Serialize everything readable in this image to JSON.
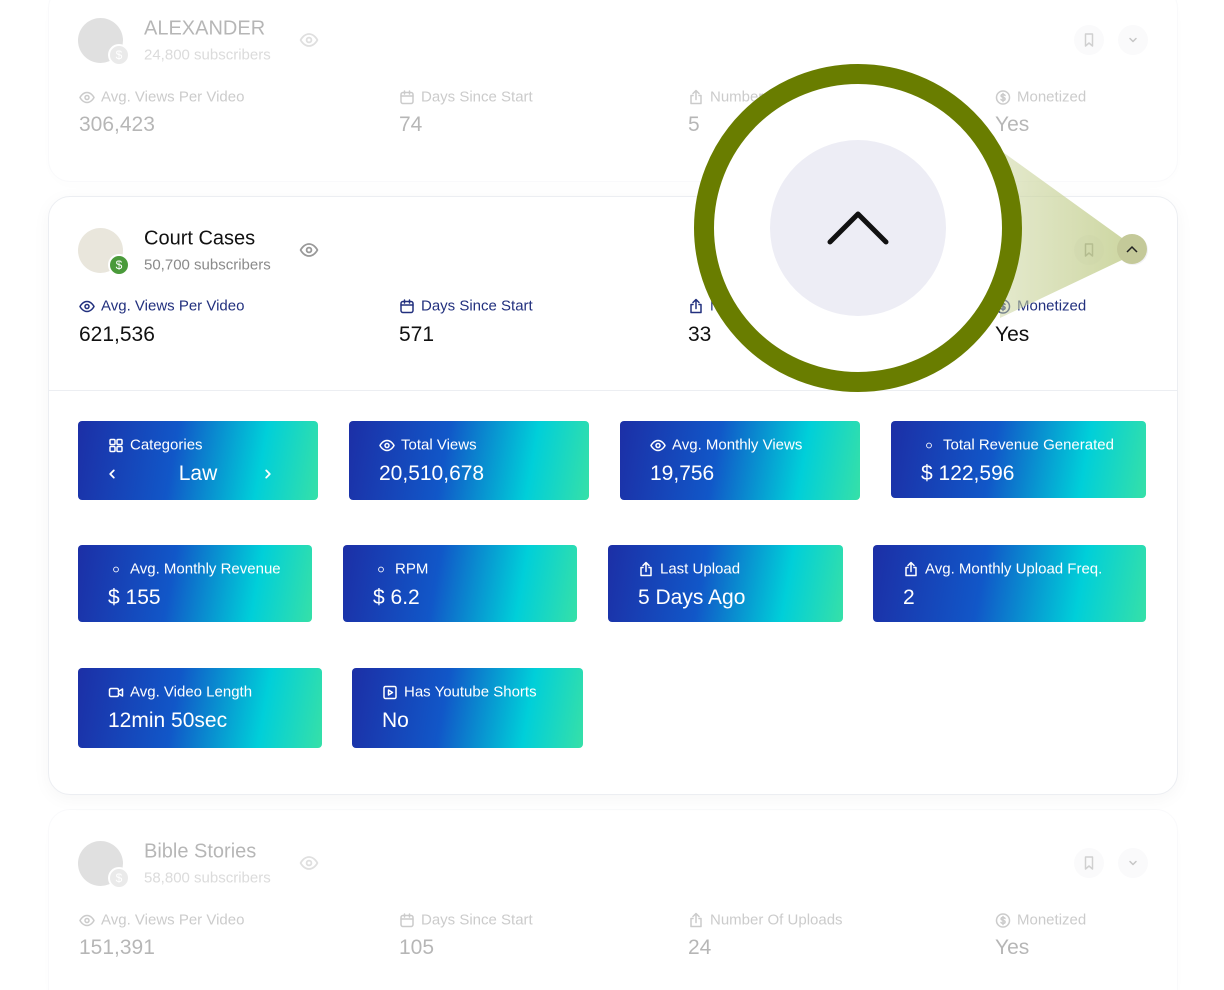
{
  "monetized_badge": "$",
  "channels": [
    {
      "name": "ALEXANDER",
      "subscribers": "24,800 subscribers",
      "stats": [
        {
          "label": "Avg. Views Per Video",
          "value": "306,423"
        },
        {
          "label": "Days Since Start",
          "value": "74"
        },
        {
          "label": "Number Of Uploads",
          "value": "5"
        },
        {
          "label": "Monetized",
          "value": "Yes"
        }
      ]
    },
    {
      "name": "Court Cases",
      "subscribers": "50,700 subscribers",
      "stats": [
        {
          "label": "Avg. Views Per Video",
          "value": "621,536"
        },
        {
          "label": "Days Since Start",
          "value": "571"
        },
        {
          "label": "Number Of Uploads",
          "value": "33"
        },
        {
          "label": "Monetized",
          "value": "Yes"
        }
      ],
      "details": [
        {
          "label": "Categories",
          "value": "Law"
        },
        {
          "label": "Total Views",
          "value": "20,510,678"
        },
        {
          "label": "Avg. Monthly Views",
          "value": "19,756"
        },
        {
          "label": "Total Revenue Generated",
          "value": "$ 122,596"
        },
        {
          "label": "Avg. Monthly Revenue",
          "value": "$ 155"
        },
        {
          "label": "RPM",
          "value": "$ 6.2"
        },
        {
          "label": "Last Upload",
          "value": "5 Days Ago"
        },
        {
          "label": "Avg. Monthly Upload Freq.",
          "value": "2"
        },
        {
          "label": "Avg. Video Length",
          "value": "12min 50sec"
        },
        {
          "label": "Has Youtube Shorts",
          "value": "No"
        }
      ]
    },
    {
      "name": "Bible Stories",
      "subscribers": "58,800 subscribers",
      "stats": [
        {
          "label": "Avg. Views Per Video",
          "value": "151,391"
        },
        {
          "label": "Days Since Start",
          "value": "105"
        },
        {
          "label": "Number Of Uploads",
          "value": "24"
        },
        {
          "label": "Monetized",
          "value": "Yes"
        }
      ]
    }
  ]
}
